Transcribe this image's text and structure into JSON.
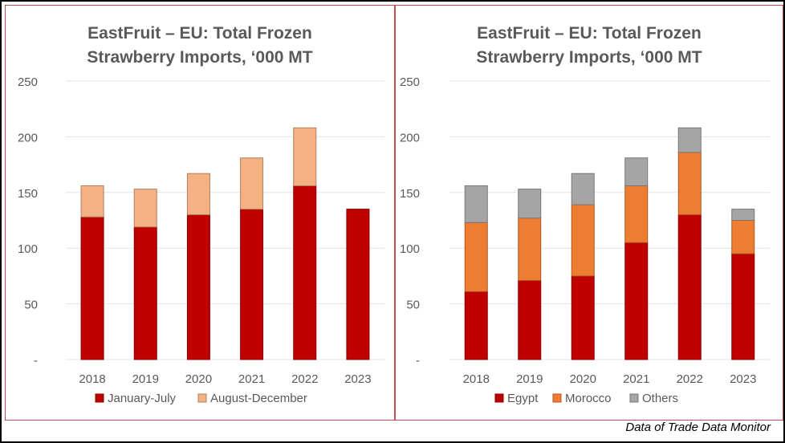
{
  "source_note": "Data of Trade Data Monitor",
  "colors": {
    "january_july": "#c00000",
    "august_december": "#f4b183",
    "egypt": "#c00000",
    "morocco": "#ed7d31",
    "others": "#a5a5a5",
    "panel_border": "#c0504d",
    "text": "#595959"
  },
  "chart_data": [
    {
      "type": "bar",
      "stacked": true,
      "title_line1": "EastFruit – EU: Total Frozen",
      "title_line2": "Strawberry Imports, ‘000 MT",
      "categories": [
        "2018",
        "2019",
        "2020",
        "2021",
        "2022",
        "2023"
      ],
      "ylim": [
        0,
        250
      ],
      "yticks": [
        {
          "value": 0,
          "label": "-"
        },
        {
          "value": 50,
          "label": "50"
        },
        {
          "value": 100,
          "label": "100"
        },
        {
          "value": 150,
          "label": "150"
        },
        {
          "value": 200,
          "label": "200"
        },
        {
          "value": 250,
          "label": "250"
        }
      ],
      "grid": true,
      "legend_position": "bottom",
      "series": [
        {
          "name": "January-July",
          "color_key": "january_july",
          "values": [
            128,
            119,
            130,
            135,
            156,
            135
          ]
        },
        {
          "name": "August-December",
          "color_key": "august_december",
          "values": [
            28,
            34,
            37,
            46,
            52,
            0
          ]
        }
      ]
    },
    {
      "type": "bar",
      "stacked": true,
      "title_line1": "EastFruit – EU: Total Frozen",
      "title_line2": "Strawberry Imports, ‘000 MT",
      "categories": [
        "2018",
        "2019",
        "2020",
        "2021",
        "2022",
        "2023"
      ],
      "ylim": [
        0,
        250
      ],
      "yticks": [
        {
          "value": 0,
          "label": "-"
        },
        {
          "value": 50,
          "label": "50"
        },
        {
          "value": 100,
          "label": "100"
        },
        {
          "value": 150,
          "label": "150"
        },
        {
          "value": 200,
          "label": "200"
        },
        {
          "value": 250,
          "label": "250"
        }
      ],
      "grid": true,
      "legend_position": "bottom",
      "series": [
        {
          "name": "Egypt",
          "color_key": "egypt",
          "values": [
            61,
            71,
            75,
            105,
            130,
            95
          ]
        },
        {
          "name": "Morocco",
          "color_key": "morocco",
          "values": [
            62,
            56,
            64,
            51,
            56,
            30
          ]
        },
        {
          "name": "Others",
          "color_key": "others",
          "values": [
            33,
            26,
            28,
            25,
            22,
            10
          ]
        }
      ]
    }
  ]
}
